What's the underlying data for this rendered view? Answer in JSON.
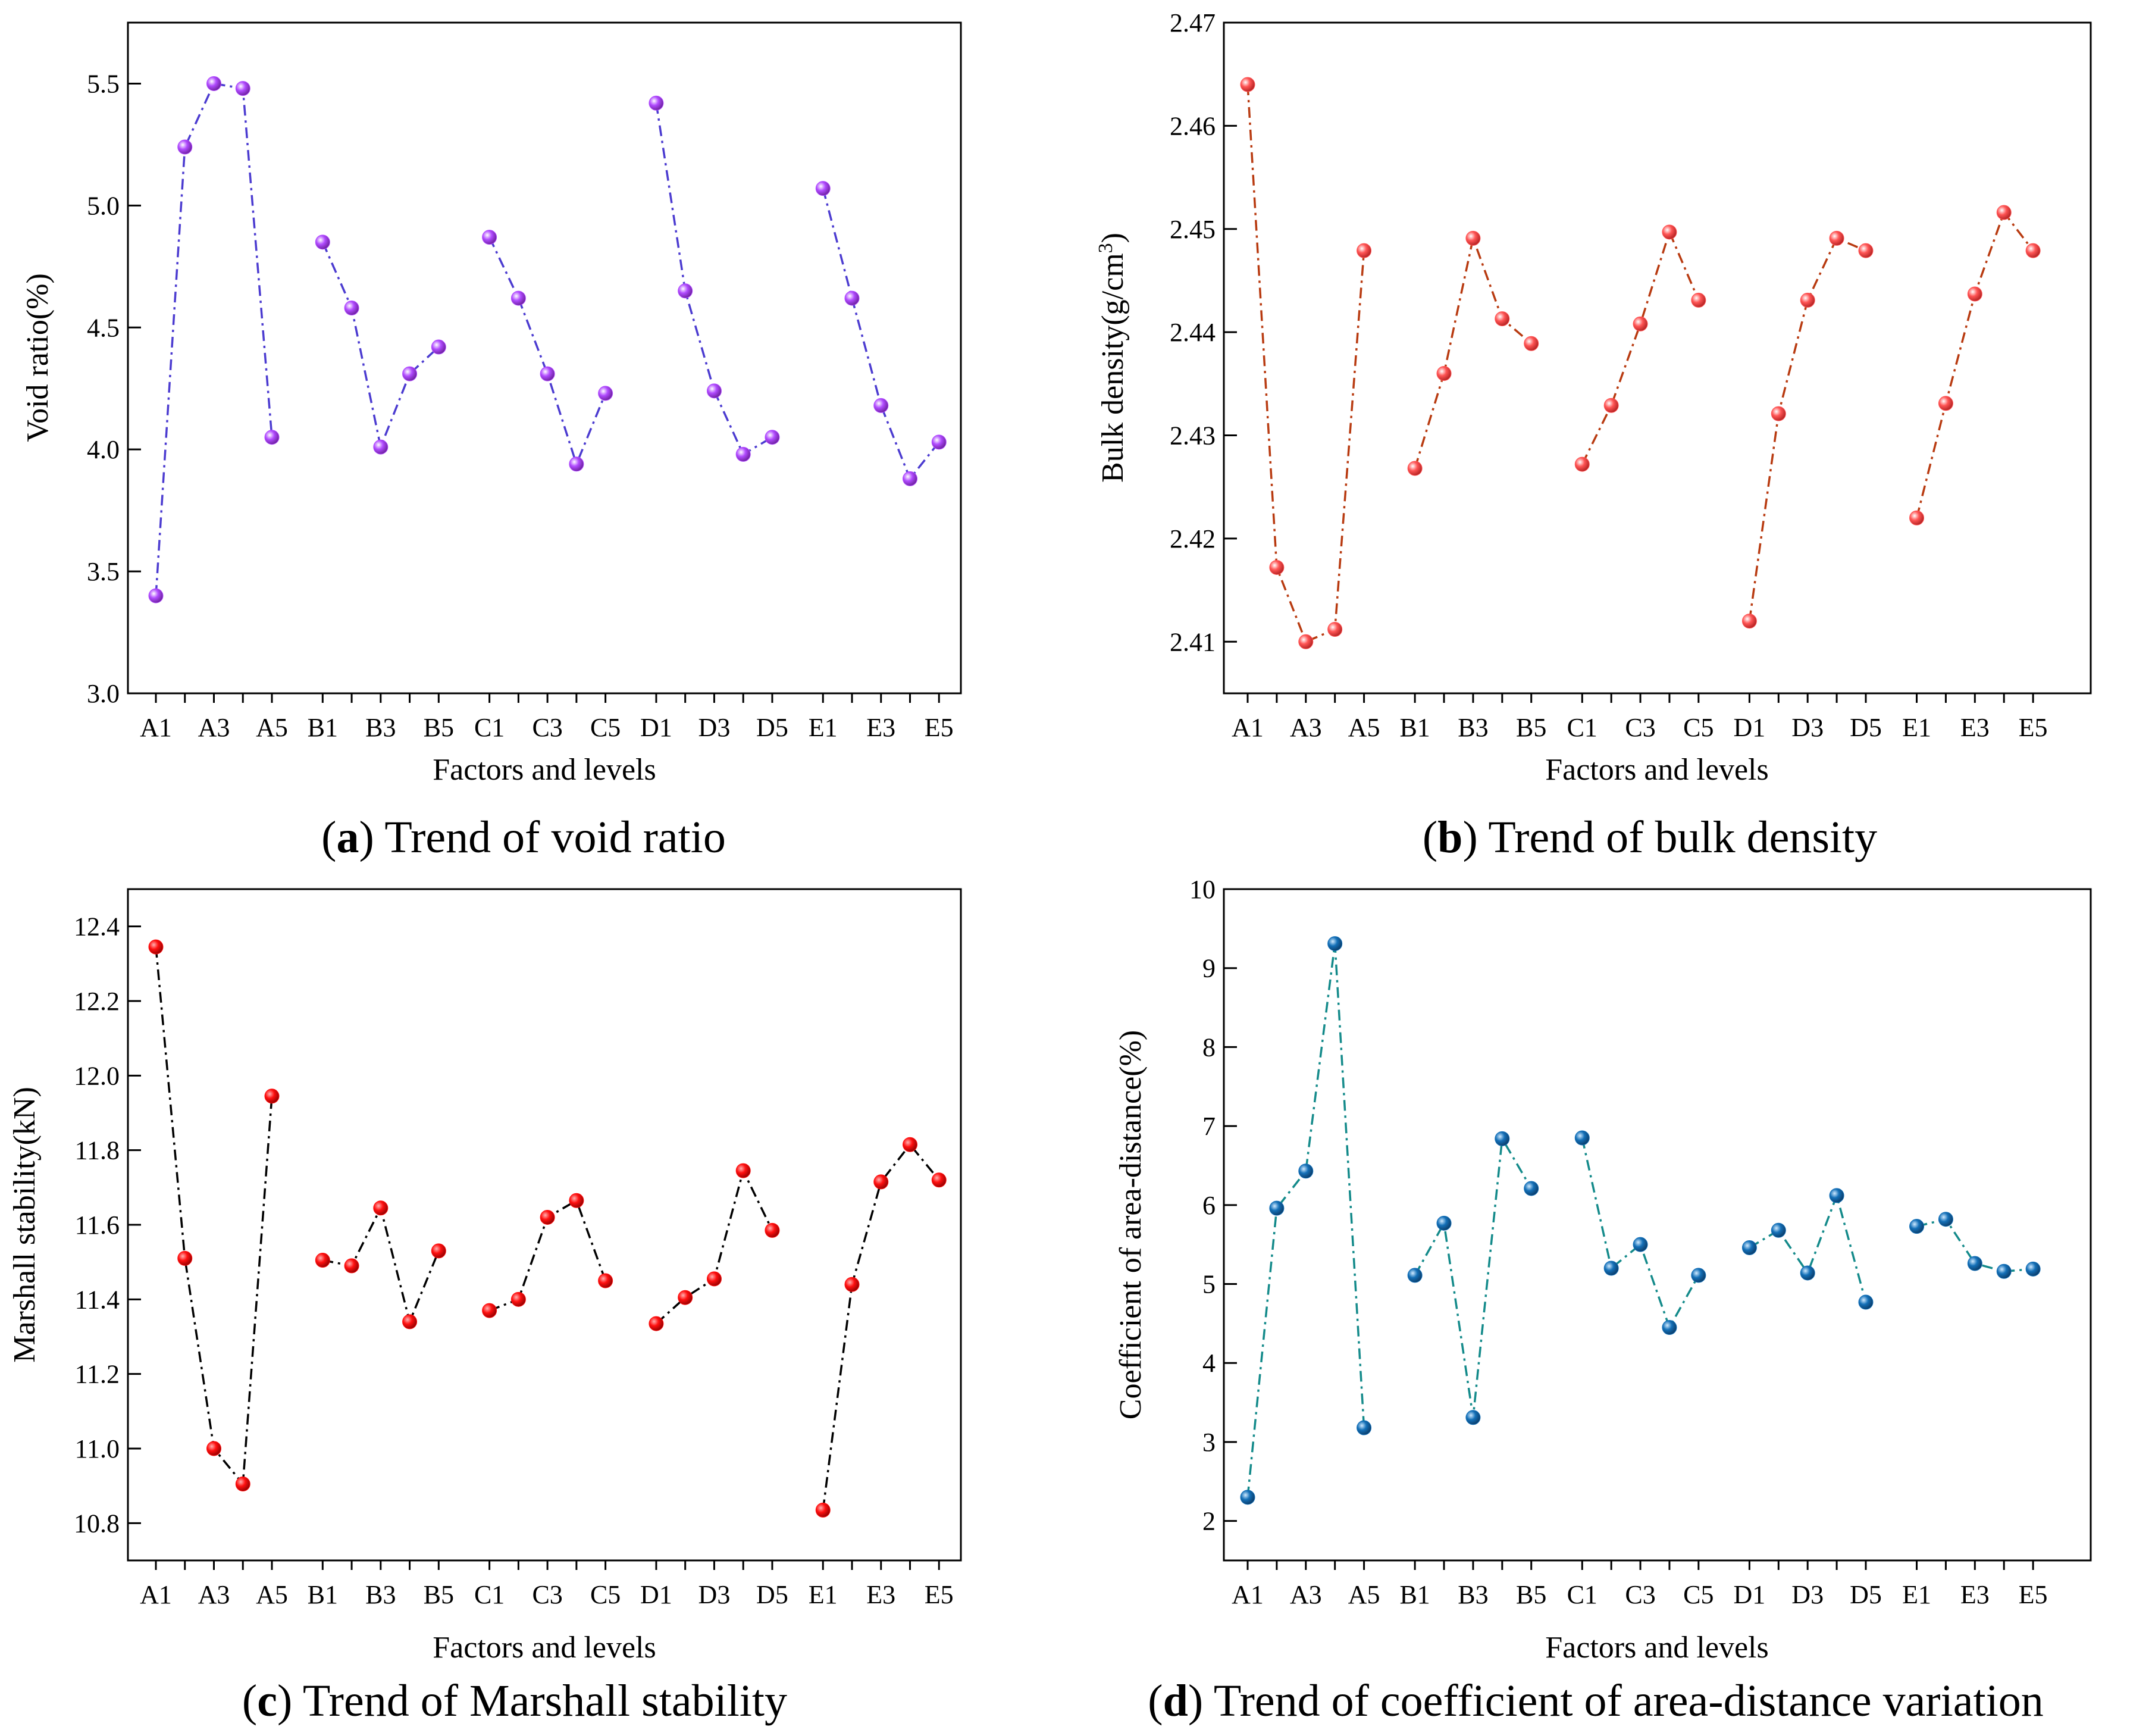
{
  "chart_data": [
    {
      "type": "line",
      "panel_id": "a",
      "caption": {
        "letter": "a",
        "text": "Trend of void ratio"
      },
      "xlabel": "Factors and levels",
      "ylabel": "Void ratio(%)",
      "ylim": [
        3.0,
        5.75
      ],
      "yticks": [
        3.0,
        3.5,
        4.0,
        4.5,
        5.0,
        5.5
      ],
      "ytick_labels": [
        "3.0",
        "3.5",
        "4.0",
        "4.5",
        "5.0",
        "5.5"
      ],
      "x_tick_labels": [
        "A1",
        "A3",
        "A5",
        "B1",
        "B3",
        "B5",
        "C1",
        "C3",
        "C5",
        "D1",
        "D3",
        "D5",
        "E1",
        "E3",
        "E5"
      ],
      "line_color": "#4B3BD0",
      "marker_color": "#B14BFF",
      "groups": [
        {
          "factor": "A",
          "levels": [
            "A1",
            "A2",
            "A3",
            "A4",
            "A5"
          ],
          "values": [
            3.4,
            5.24,
            5.5,
            5.48,
            4.05
          ]
        },
        {
          "factor": "B",
          "levels": [
            "B1",
            "B2",
            "B3",
            "B4",
            "B5"
          ],
          "values": [
            4.85,
            4.58,
            4.01,
            4.31,
            4.42
          ]
        },
        {
          "factor": "C",
          "levels": [
            "C1",
            "C2",
            "C3",
            "C4",
            "C5"
          ],
          "values": [
            4.87,
            4.62,
            4.31,
            3.94,
            4.23
          ]
        },
        {
          "factor": "D",
          "levels": [
            "D1",
            "D2",
            "D3",
            "D4",
            "D5"
          ],
          "values": [
            5.42,
            4.65,
            4.24,
            3.98,
            4.05
          ]
        },
        {
          "factor": "E",
          "levels": [
            "E1",
            "E2",
            "E3",
            "E4",
            "E5"
          ],
          "values": [
            5.07,
            4.62,
            4.18,
            3.88,
            4.03
          ]
        }
      ]
    },
    {
      "type": "line",
      "panel_id": "b",
      "caption": {
        "letter": "b",
        "text": "Trend of bulk density"
      },
      "xlabel": "Factors and levels",
      "ylabel": "Bulk density(g/cm",
      "ylabel_sup": "3",
      "ylabel_end": ")",
      "ylim": [
        2.405,
        2.47
      ],
      "yticks": [
        2.41,
        2.42,
        2.43,
        2.44,
        2.45,
        2.46,
        2.47
      ],
      "ytick_labels": [
        "2.41",
        "2.42",
        "2.43",
        "2.44",
        "2.45",
        "2.46",
        "2.47"
      ],
      "x_tick_labels": [
        "A1",
        "A3",
        "A5",
        "B1",
        "B3",
        "B5",
        "C1",
        "C3",
        "C5",
        "D1",
        "D3",
        "D5",
        "E1",
        "E3",
        "E5"
      ],
      "line_color": "#B83A10",
      "marker_color": "#FF5555",
      "groups": [
        {
          "factor": "A",
          "levels": [
            "A1",
            "A2",
            "A3",
            "A4",
            "A5"
          ],
          "values": [
            2.464,
            2.4172,
            2.41,
            2.4112,
            2.4479
          ]
        },
        {
          "factor": "B",
          "levels": [
            "B1",
            "B2",
            "B3",
            "B4",
            "B5"
          ],
          "values": [
            2.4268,
            2.436,
            2.4491,
            2.4413,
            2.4389
          ]
        },
        {
          "factor": "C",
          "levels": [
            "C1",
            "C2",
            "C3",
            "C4",
            "C5"
          ],
          "values": [
            2.4272,
            2.4329,
            2.4408,
            2.4497,
            2.4431
          ]
        },
        {
          "factor": "D",
          "levels": [
            "D1",
            "D2",
            "D3",
            "D4",
            "D5"
          ],
          "values": [
            2.412,
            2.4321,
            2.4431,
            2.4491,
            2.4479
          ]
        },
        {
          "factor": "E",
          "levels": [
            "E1",
            "E2",
            "E3",
            "E4",
            "E5"
          ],
          "values": [
            2.422,
            2.4331,
            2.4437,
            2.4516,
            2.4479
          ]
        }
      ]
    },
    {
      "type": "line",
      "panel_id": "c",
      "caption": {
        "letter": "c",
        "text": "Trend of Marshall stability"
      },
      "xlabel": "Factors and levels",
      "ylabel": "Marshall stability(kN)",
      "ylim": [
        10.7,
        12.5
      ],
      "yticks": [
        10.8,
        11.0,
        11.2,
        11.4,
        11.6,
        11.8,
        12.0,
        12.2,
        12.4
      ],
      "ytick_labels": [
        "10.8",
        "11.0",
        "11.2",
        "11.4",
        "11.6",
        "11.8",
        "12.0",
        "12.2",
        "12.4"
      ],
      "x_tick_labels": [
        "A1",
        "A3",
        "A5",
        "B1",
        "B3",
        "B5",
        "C1",
        "C3",
        "C5",
        "D1",
        "D3",
        "D5",
        "E1",
        "E3",
        "E5"
      ],
      "line_color": "#000000",
      "marker_color": "#FF1010",
      "groups": [
        {
          "factor": "A",
          "levels": [
            "A1",
            "A2",
            "A3",
            "A4",
            "A5"
          ],
          "values": [
            12.345,
            11.51,
            11.0,
            10.905,
            11.945
          ]
        },
        {
          "factor": "B",
          "levels": [
            "B1",
            "B2",
            "B3",
            "B4",
            "B5"
          ],
          "values": [
            11.505,
            11.49,
            11.645,
            11.34,
            11.53
          ]
        },
        {
          "factor": "C",
          "levels": [
            "C1",
            "C2",
            "C3",
            "C4",
            "C5"
          ],
          "values": [
            11.37,
            11.4,
            11.62,
            11.665,
            11.45
          ]
        },
        {
          "factor": "D",
          "levels": [
            "D1",
            "D2",
            "D3",
            "D4",
            "D5"
          ],
          "values": [
            11.335,
            11.405,
            11.455,
            11.745,
            11.585
          ]
        },
        {
          "factor": "E",
          "levels": [
            "E1",
            "E2",
            "E3",
            "E4",
            "E5"
          ],
          "values": [
            10.835,
            11.44,
            11.715,
            11.815,
            11.72
          ]
        }
      ]
    },
    {
      "type": "line",
      "panel_id": "d",
      "caption": {
        "letter": "d",
        "text": "Trend of coefficient of area-distance variation"
      },
      "xlabel": "Factors and levels",
      "ylabel": "Coefficient of area-distance(%)",
      "ylim": [
        1.5,
        10.0
      ],
      "yticks": [
        2,
        3,
        4,
        5,
        6,
        7,
        8,
        9,
        10
      ],
      "ytick_labels": [
        "2",
        "3",
        "4",
        "5",
        "6",
        "7",
        "8",
        "9",
        "10"
      ],
      "x_tick_labels": [
        "A1",
        "A3",
        "A5",
        "B1",
        "B3",
        "B5",
        "C1",
        "C3",
        "C5",
        "D1",
        "D3",
        "D5",
        "E1",
        "E3",
        "E5"
      ],
      "line_color": "#138A8A",
      "marker_color": "#1470B8",
      "groups": [
        {
          "factor": "A",
          "levels": [
            "A1",
            "A2",
            "A3",
            "A4",
            "A5"
          ],
          "values": [
            2.3,
            5.96,
            6.43,
            9.31,
            3.18
          ]
        },
        {
          "factor": "B",
          "levels": [
            "B1",
            "B2",
            "B3",
            "B4",
            "B5"
          ],
          "values": [
            5.11,
            5.77,
            3.31,
            6.84,
            6.21
          ]
        },
        {
          "factor": "C",
          "levels": [
            "C1",
            "C2",
            "C3",
            "C4",
            "C5"
          ],
          "values": [
            6.85,
            5.2,
            5.5,
            4.45,
            5.11
          ]
        },
        {
          "factor": "D",
          "levels": [
            "D1",
            "D2",
            "D3",
            "D4",
            "D5"
          ],
          "values": [
            5.46,
            5.68,
            5.14,
            6.12,
            4.77
          ]
        },
        {
          "factor": "E",
          "levels": [
            "E1",
            "E2",
            "E3",
            "E4",
            "E5"
          ],
          "values": [
            5.73,
            5.82,
            5.26,
            5.16,
            5.19
          ]
        }
      ]
    }
  ]
}
